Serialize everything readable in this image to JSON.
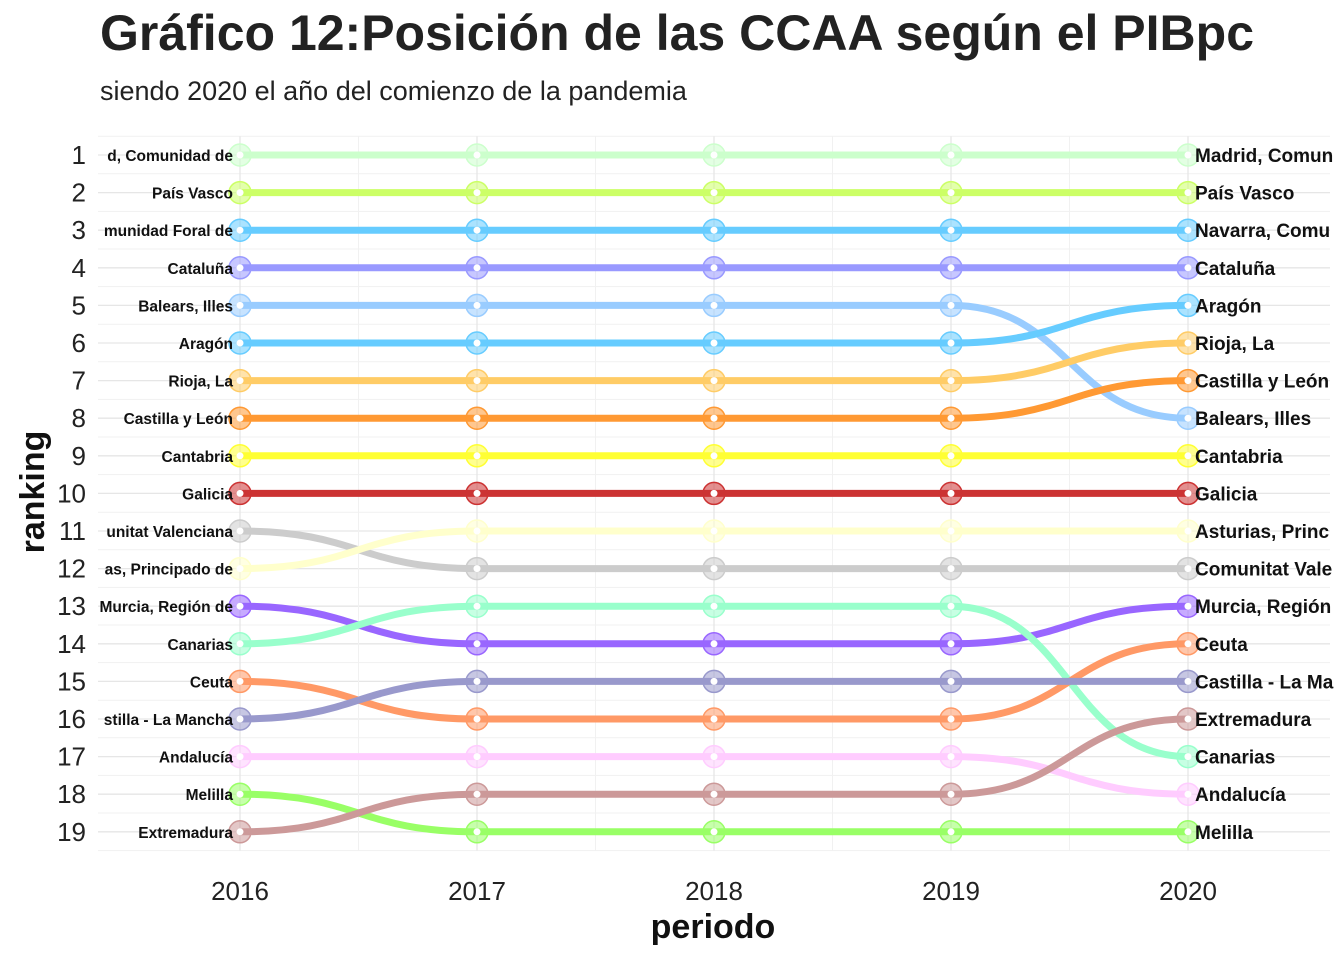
{
  "chart_data": {
    "type": "line",
    "title": "Gráfico 12:Posición de las CCAA según el PIBpc",
    "subtitle": "siendo 2020 el año del comienzo de la pandemia",
    "xlabel": "periodo",
    "ylabel": "ranking",
    "x": [
      2016,
      2017,
      2018,
      2019,
      2020
    ],
    "y_ticks": [
      1,
      2,
      3,
      4,
      5,
      6,
      7,
      8,
      9,
      10,
      11,
      12,
      13,
      14,
      15,
      16,
      17,
      18,
      19
    ],
    "ylim": [
      19,
      1
    ],
    "grid": true,
    "legend": "none",
    "start_labels": [
      "d, Comunidad de",
      "País Vasco",
      "munidad Foral de",
      "Cataluña",
      "Balears, Illes",
      "Aragón",
      "Rioja, La",
      "Castilla y León",
      "Cantabria",
      "Galicia",
      "unitat Valenciana",
      "as, Principado de",
      "Murcia, Región de",
      "Canarias",
      "Ceuta",
      "stilla - La Mancha",
      "Andalucía",
      "Melilla",
      "Extremadura"
    ],
    "end_labels": [
      "Madrid, Comun",
      "País Vasco",
      "Navarra, Comu",
      "Cataluña",
      "Aragón",
      "Rioja, La",
      "Castilla y León",
      "Balears, Illes",
      "Cantabria",
      "Galicia",
      "Asturias, Princ",
      "Comunitat Vale",
      "Murcia, Región",
      "Ceuta",
      "Castilla - La Ma",
      "Extremadura",
      "Canarias",
      "Andalucía",
      "Melilla"
    ],
    "series": [
      {
        "color": "#ccffcc",
        "values": [
          1,
          1,
          1,
          1,
          1
        ]
      },
      {
        "color": "#ccff66",
        "values": [
          2,
          2,
          2,
          2,
          2
        ]
      },
      {
        "color": "#66ccff",
        "values": [
          3,
          3,
          3,
          3,
          3
        ]
      },
      {
        "color": "#9999ff",
        "values": [
          4,
          4,
          4,
          4,
          4
        ]
      },
      {
        "color": "#99ccff",
        "values": [
          5,
          5,
          5,
          5,
          8
        ]
      },
      {
        "color": "#66ccff",
        "values": [
          6,
          6,
          6,
          6,
          5
        ]
      },
      {
        "color": "#ffcc66",
        "values": [
          7,
          7,
          7,
          7,
          6
        ]
      },
      {
        "color": "#ff9933",
        "values": [
          8,
          8,
          8,
          8,
          7
        ]
      },
      {
        "color": "#ffff33",
        "values": [
          9,
          9,
          9,
          9,
          9
        ]
      },
      {
        "color": "#cc3333",
        "values": [
          10,
          10,
          10,
          10,
          10
        ]
      },
      {
        "color": "#cccccc",
        "values": [
          11,
          12,
          12,
          12,
          12
        ]
      },
      {
        "color": "#ffffcc",
        "values": [
          12,
          11,
          11,
          11,
          11
        ]
      },
      {
        "color": "#9966ff",
        "values": [
          13,
          14,
          14,
          14,
          13
        ]
      },
      {
        "color": "#99ffcc",
        "values": [
          14,
          13,
          13,
          13,
          17
        ]
      },
      {
        "color": "#ff9966",
        "values": [
          15,
          16,
          16,
          16,
          14
        ]
      },
      {
        "color": "#9999cc",
        "values": [
          16,
          15,
          15,
          15,
          15
        ]
      },
      {
        "color": "#ffccff",
        "values": [
          17,
          17,
          17,
          17,
          18
        ]
      },
      {
        "color": "#99ff66",
        "values": [
          18,
          19,
          19,
          19,
          19
        ]
      },
      {
        "color": "#cc9999",
        "values": [
          19,
          18,
          18,
          18,
          16
        ]
      }
    ]
  }
}
